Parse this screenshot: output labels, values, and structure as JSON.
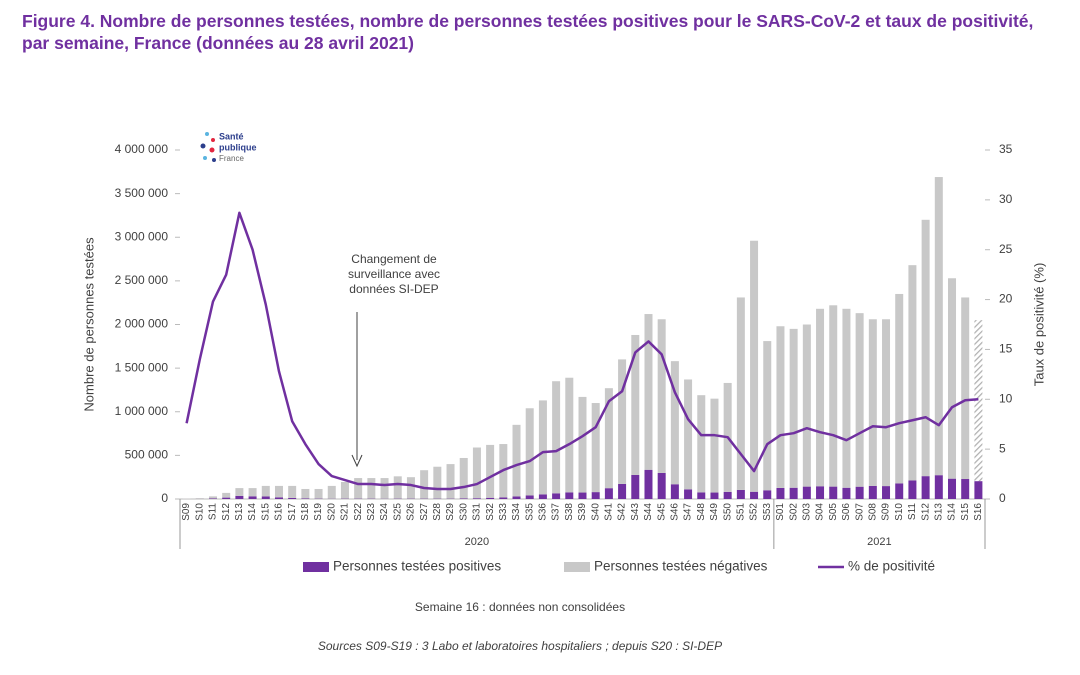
{
  "chart_data": {
    "type": "bar",
    "title": "Figure 4. Nombre de personnes testées, nombre de personnes testées positives pour le SARS-CoV-2 et taux de positivité, par semaine, France (données au 28 avril 2021)",
    "category_groups": [
      {
        "label": "2020",
        "categories": [
          "S09",
          "S10",
          "S11",
          "S12",
          "S13",
          "S14",
          "S15",
          "S16",
          "S17",
          "S18",
          "S19",
          "S20",
          "S21",
          "S22",
          "S23",
          "S24",
          "S25",
          "S26",
          "S27",
          "S28",
          "S29",
          "S30",
          "S31",
          "S32",
          "S33",
          "S34",
          "S35",
          "S36",
          "S37",
          "S38",
          "S39",
          "S40",
          "S41",
          "S42",
          "S43",
          "S44",
          "S45",
          "S46",
          "S47",
          "S48",
          "S49",
          "S50",
          "S51",
          "S52",
          "S53"
        ]
      },
      {
        "label": "2021",
        "categories": [
          "S01",
          "S02",
          "S03",
          "S04",
          "S05",
          "S06",
          "S07",
          "S08",
          "S09",
          "S10",
          "S11",
          "S12",
          "S13",
          "S14",
          "S15",
          "S16"
        ]
      }
    ],
    "series": [
      {
        "name": "Personnes testées positives",
        "type": "bar",
        "color": "#7030a0",
        "values": [
          400,
          1400,
          6000,
          16000,
          36000,
          31000,
          29000,
          19000,
          12000,
          6000,
          4000,
          3000,
          4000,
          4000,
          4000,
          3000,
          4000,
          4000,
          4000,
          4000,
          4000,
          6000,
          9000,
          14000,
          18000,
          29000,
          40000,
          53000,
          65000,
          76000,
          74000,
          79000,
          124000,
          173000,
          276000,
          335000,
          299000,
          169000,
          110000,
          76000,
          74000,
          82000,
          104000,
          83000,
          100000,
          127000,
          129000,
          142000,
          146000,
          142000,
          129000,
          141000,
          150000,
          148000,
          179000,
          212000,
          262000,
          273000,
          233000,
          229000,
          205000
        ]
      },
      {
        "name": "Personnes testées négatives",
        "type": "bar",
        "color": "#c8c8c8",
        "values": [
          4600,
          8600,
          24000,
          54000,
          89000,
          94000,
          121000,
          131000,
          138000,
          109000,
          111000,
          147000,
          191000,
          236000,
          236000,
          237000,
          256000,
          246000,
          326000,
          366000,
          396000,
          464000,
          581000,
          606000,
          612000,
          821000,
          1000000,
          1077000,
          1285000,
          1314000,
          1096000,
          1021000,
          1146000,
          1427000,
          1604000,
          1785000,
          1761000,
          1411000,
          1260000,
          1114000,
          1076000,
          1248000,
          2206000,
          2877000,
          1710000,
          1853000,
          1821000,
          1858000,
          2034000,
          2078000,
          2051000,
          1989000,
          1910000,
          1912000,
          2171000,
          2468000,
          2938000,
          3417000,
          2297000,
          2081000,
          1845000
        ]
      },
      {
        "name": "% de positivité",
        "type": "line",
        "axis": "y2",
        "color": "#7030a0",
        "values": [
          7.6,
          14,
          19.8,
          22.5,
          28.7,
          25,
          19.5,
          12.8,
          7.8,
          5.5,
          3.5,
          2.3,
          1.9,
          1.5,
          1.5,
          1.4,
          1.5,
          1.4,
          1.1,
          1.0,
          1.0,
          1.2,
          1.5,
          2.2,
          2.9,
          3.4,
          3.8,
          4.7,
          4.8,
          5.5,
          6.3,
          7.2,
          9.8,
          10.8,
          14.7,
          15.8,
          14.5,
          10.7,
          8.0,
          6.4,
          6.4,
          6.2,
          4.5,
          2.8,
          5.5,
          6.4,
          6.6,
          7.1,
          6.7,
          6.4,
          5.9,
          6.6,
          7.3,
          7.2,
          7.6,
          7.9,
          8.2,
          7.4,
          9.2,
          9.9,
          10.0
        ]
      }
    ],
    "hatch_last": true,
    "ylabel": "Nombre de personnes testées",
    "y2label": "Taux de positivité (%)",
    "ylim": [
      0,
      4000000
    ],
    "yticks": [
      0,
      {
        "value": 500000,
        "label": "500 000"
      },
      {
        "value": 1000000,
        "label": "1 000 000"
      },
      {
        "value": 1500000,
        "label": "1 500 000"
      },
      {
        "value": 2000000,
        "label": "2 000 000"
      },
      {
        "value": 2500000,
        "label": "2 500 000"
      },
      {
        "value": 3000000,
        "label": "3 000 000"
      },
      {
        "value": 3500000,
        "label": "3 500 000"
      },
      {
        "value": 4000000,
        "label": "4 000 000"
      }
    ],
    "y2lim": [
      0,
      35
    ],
    "y2ticks": [
      0,
      5,
      10,
      15,
      20,
      25,
      30,
      35
    ],
    "annotation": [
      "Changement de",
      "surveillance avec",
      "données SI-DEP"
    ],
    "logo": [
      "Santé",
      "publique",
      "France"
    ],
    "footnotes": [
      "Semaine 16 : données non consolidées",
      "Sources S09-S19 : 3 Labo et laboratoires hospitaliers ; depuis S20 : SI-DEP"
    ]
  }
}
